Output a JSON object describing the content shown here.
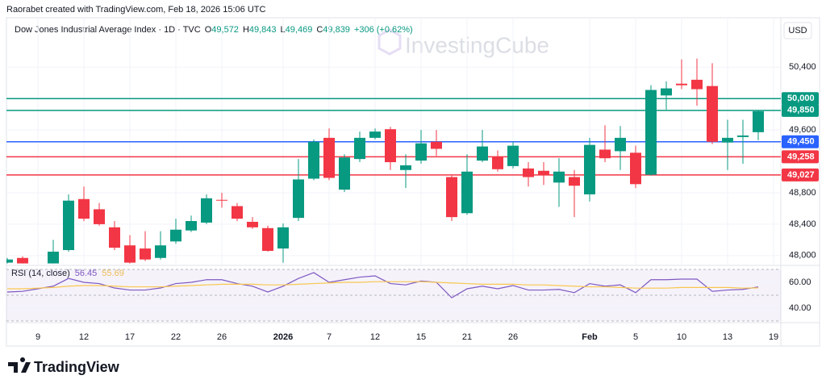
{
  "header": {
    "attribution": "Raorabet created with TradingView.com, Feb 18, 2026 15:06 UTC",
    "symbol": "Dow Jones Industrial Average Index · 1D · TVC",
    "ohlc": [
      {
        "key": "O",
        "value": "49,572"
      },
      {
        "key": "H",
        "value": "49,843"
      },
      {
        "key": "L",
        "value": "49,469"
      },
      {
        "key": "C",
        "value": "49,839"
      }
    ],
    "change": "+306 (+0.62%)",
    "currency": "USD"
  },
  "watermark": "InvestingCube",
  "footer_logo": "TradingView",
  "chart_data": [
    {
      "type": "candlestick",
      "categories": [
        null,
        null,
        "9",
        null,
        null,
        "12",
        null,
        null,
        "17",
        null,
        null,
        "22",
        null,
        null,
        "26",
        null,
        null,
        null,
        "2026",
        null,
        null,
        "7",
        null,
        null,
        "12",
        null,
        null,
        "15",
        null,
        null,
        "21",
        null,
        null,
        "26",
        null,
        null,
        null,
        null,
        "Feb",
        null,
        null,
        "5",
        null,
        null,
        "10",
        null,
        null,
        "13",
        null,
        null,
        "19"
      ],
      "open": [
        47910,
        47970,
        null,
        47900,
        48070,
        48720,
        48590,
        48360,
        48130,
        48090,
        47970,
        48180,
        48320,
        48420,
        48710,
        48630,
        48430,
        48350,
        48090,
        48480,
        48980,
        49500,
        48840,
        49230,
        49500,
        49610,
        49090,
        49210,
        49450,
        49000,
        48540,
        49210,
        49260,
        49140,
        49110,
        49080,
        48930,
        49000,
        48780,
        49350,
        49330,
        49310,
        49030,
        50040,
        50190,
        50240,
        50160,
        49440,
        49510,
        49572,
        null
      ],
      "high": [
        47970,
        47990,
        null,
        48200,
        48780,
        48880,
        48670,
        48440,
        48260,
        48310,
        48310,
        48470,
        48510,
        48780,
        48800,
        48670,
        48490,
        48380,
        48410,
        49230,
        49480,
        49620,
        49290,
        49580,
        49620,
        49640,
        49290,
        49600,
        49600,
        49020,
        49290,
        49600,
        49340,
        49450,
        49190,
        49190,
        49240,
        49090,
        49500,
        49660,
        49650,
        49400,
        50170,
        50220,
        50500,
        50510,
        50450,
        49730,
        49730,
        49843,
        null
      ],
      "low": [
        47900,
        47900,
        null,
        47900,
        48050,
        48440,
        48380,
        48070,
        47900,
        47930,
        47950,
        48150,
        48300,
        48400,
        48610,
        48440,
        48340,
        48050,
        47910,
        48440,
        48960,
        48960,
        48810,
        49190,
        49480,
        49090,
        48860,
        49170,
        49270,
        48440,
        48520,
        49190,
        49070,
        49110,
        48880,
        48900,
        48620,
        48490,
        48690,
        49190,
        49090,
        48860,
        49020,
        49860,
        50120,
        49910,
        49420,
        49090,
        49170,
        49469,
        null
      ],
      "close": [
        47950,
        47900,
        null,
        48050,
        48700,
        48470,
        48400,
        48100,
        47910,
        47950,
        48130,
        48330,
        48440,
        48730,
        48700,
        48470,
        48360,
        48060,
        48360,
        48970,
        49450,
        48990,
        49250,
        49500,
        49580,
        49190,
        49150,
        49430,
        49360,
        48490,
        49070,
        49390,
        49100,
        49400,
        49000,
        49030,
        49070,
        48890,
        49410,
        49240,
        49500,
        48910,
        50110,
        50130,
        50170,
        50120,
        49450,
        49500,
        49530,
        49839,
        null
      ],
      "up_color": "#089981",
      "down_color": "#f23645",
      "ylim": [
        47875,
        51030
      ],
      "yticks": [
        {
          "value": 48000,
          "label": "48,000"
        },
        {
          "value": 48400,
          "label": "48,400"
        },
        {
          "value": 48800,
          "label": "48,800"
        },
        {
          "value": 49600,
          "label": "49,600"
        },
        {
          "value": 50400,
          "label": "50,400"
        }
      ],
      "grid": true,
      "hlines": [
        {
          "value": 50000,
          "label": "50,000",
          "color": "#089981"
        },
        {
          "value": 49850,
          "label": "49,850",
          "color": "#089981"
        },
        {
          "value": 49450,
          "label": "49,450",
          "color": "#2962ff"
        },
        {
          "value": 49258,
          "label": "49,258",
          "color": "#f23645"
        },
        {
          "value": 49027,
          "label": "49,027",
          "color": "#f23645"
        }
      ]
    },
    {
      "type": "line",
      "title": "RSI (14, close)",
      "series": [
        {
          "name": "RSI",
          "color": "#7e57c2",
          "values": [
            52.5,
            53,
            55,
            57,
            63,
            60,
            59,
            55.6,
            54,
            54,
            55.6,
            59,
            60,
            62,
            62,
            59,
            57,
            52.5,
            57,
            63,
            67.5,
            60,
            62,
            64,
            65,
            59,
            58,
            61,
            60,
            48,
            55,
            57,
            55,
            57.5,
            54,
            54,
            54.5,
            52,
            59,
            57,
            58,
            52,
            62,
            62,
            62.5,
            62.5,
            53,
            54,
            54.5,
            56.45,
            null
          ]
        },
        {
          "name": "RSI-based MA",
          "color": "#f9c74f",
          "values": [
            55,
            55,
            55.5,
            56,
            57,
            57.5,
            57.5,
            57,
            56.5,
            56.5,
            56.5,
            57,
            57.5,
            58,
            58.5,
            58.5,
            58.5,
            58,
            58,
            58.5,
            59,
            59.5,
            60,
            60,
            60.5,
            60.5,
            60.5,
            60.5,
            60,
            59.5,
            59,
            58.5,
            58.5,
            58.5,
            58,
            58,
            57.5,
            57,
            56.5,
            56.5,
            56,
            55.5,
            55.5,
            55.5,
            56,
            56,
            56,
            56,
            55.5,
            55.69,
            null
          ]
        }
      ],
      "ylim": [
        28.75,
        73.1
      ],
      "yticks": [
        {
          "value": 60,
          "label": "60.00"
        },
        {
          "value": 40,
          "label": "40.00"
        }
      ],
      "bands": [
        70,
        50,
        30
      ],
      "band_color": "#7e57c2"
    }
  ]
}
